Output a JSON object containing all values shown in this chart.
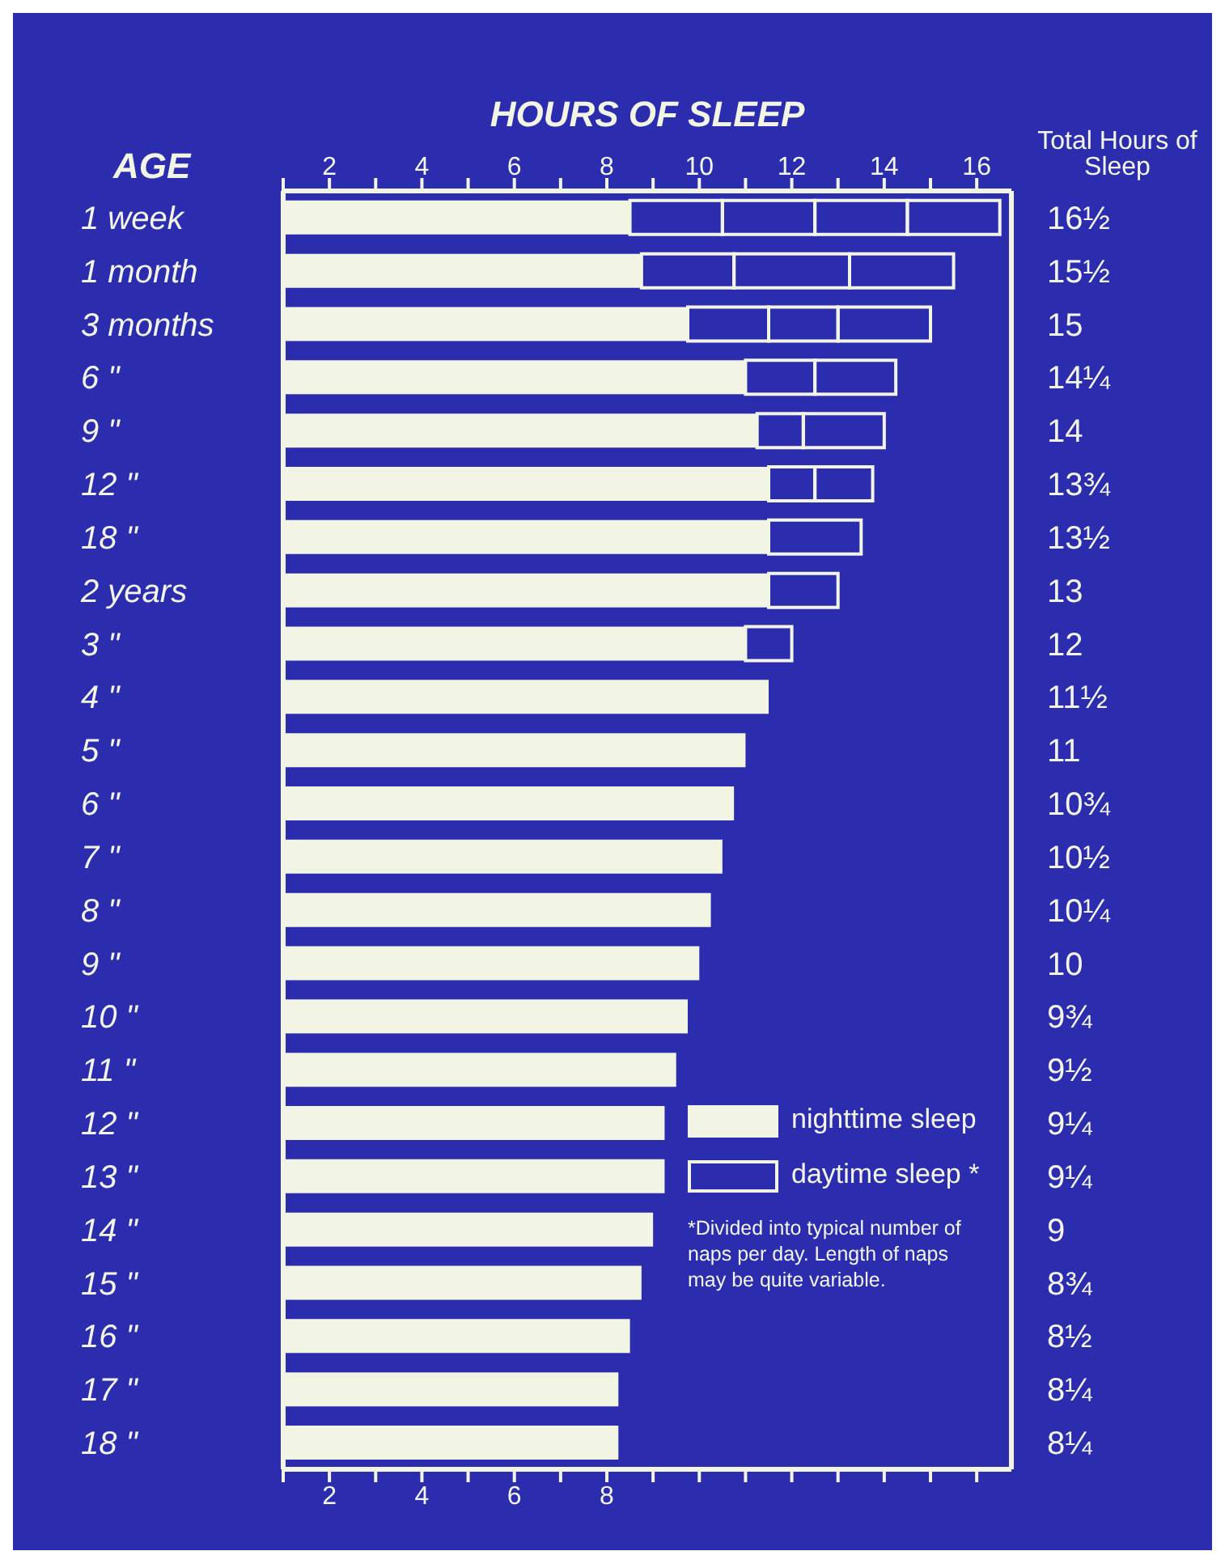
{
  "chart_data": {
    "type": "bar",
    "orientation": "horizontal",
    "stacked": true,
    "title": "HOURS OF SLEEP",
    "ylabel": "AGE",
    "categories": [
      "1 week",
      "1 month",
      "3 months",
      "6 \"",
      "9 \"",
      "12 \"",
      "18 \"",
      "2 years",
      "3 \"",
      "4 \"",
      "5 \"",
      "6 \"",
      "7 \"",
      "8 \"",
      "9 \"",
      "10 \"",
      "11 \"",
      "12 \"",
      "13 \"",
      "14 \"",
      "15 \"",
      "16 \"",
      "17 \"",
      "18 \""
    ],
    "series": [
      {
        "name": "nighttime sleep",
        "color": "#f2f4e4",
        "values": [
          8.5,
          8.75,
          9.75,
          11,
          11.25,
          11.5,
          11.5,
          11.5,
          11,
          11.5,
          11,
          10.75,
          10.5,
          10.25,
          10,
          9.75,
          9.5,
          9.25,
          9.25,
          9,
          8.75,
          8.5,
          8.25,
          8.25
        ]
      },
      {
        "name": "daytime sleep *",
        "color": "#f2f4e4",
        "values": [
          2,
          2,
          1.75,
          1.5,
          1,
          1,
          2,
          1.5,
          1,
          null,
          null,
          null,
          null,
          null,
          null,
          null,
          null,
          null,
          null,
          null,
          null,
          null,
          null,
          null
        ]
      },
      {
        "color": "#f2f4e4",
        "values": [
          2,
          2.5,
          1.5,
          1.75,
          1.75,
          1.25,
          null,
          null,
          null,
          null,
          null,
          null,
          null,
          null,
          null,
          null,
          null,
          null,
          null,
          null,
          null,
          null,
          null,
          null
        ]
      },
      {
        "color": "#f2f4e4",
        "values": [
          2,
          2.25,
          2,
          null,
          null,
          null,
          null,
          null,
          null,
          null,
          null,
          null,
          null,
          null,
          null,
          null,
          null,
          null,
          null,
          null,
          null,
          null,
          null,
          null
        ]
      },
      {
        "color": "#f2f4e4",
        "values": [
          2,
          null,
          null,
          null,
          null,
          null,
          null,
          null,
          null,
          null,
          null,
          null,
          null,
          null,
          null,
          null,
          null,
          null,
          null,
          null,
          null,
          null,
          null,
          null
        ]
      }
    ],
    "xlim": [
      1,
      16.75
    ],
    "xticks": [
      {
        "value": 1,
        "label": null
      },
      2,
      {
        "value": 3,
        "label": null
      },
      4,
      {
        "value": 5,
        "label": null
      },
      6,
      {
        "value": 7,
        "label": null
      },
      8,
      {
        "value": 9,
        "label": null
      },
      {
        "value": 10,
        "label": null
      },
      {
        "value": 11,
        "label": null
      },
      {
        "value": 12,
        "label": null
      },
      {
        "value": 13,
        "label": null
      },
      {
        "value": 14,
        "label": null
      },
      {
        "value": 15,
        "label": null
      },
      {
        "value": 16,
        "label": null
      }
    ],
    "x2lim": [
      1,
      16.75
    ],
    "x2ticks": [
      {
        "value": 1,
        "label": null
      },
      2,
      {
        "value": 3,
        "label": null
      },
      4,
      {
        "value": 5,
        "label": null
      },
      6,
      {
        "value": 7,
        "label": null
      },
      8,
      {
        "value": 9,
        "label": null
      },
      10,
      {
        "value": 11,
        "label": null
      },
      12,
      {
        "value": 13,
        "label": null
      },
      14,
      {
        "value": 15,
        "label": null
      },
      16
    ],
    "legend": "bottom right",
    "annotations": [
      "Total Hours of Sleep",
      "*Divided into typical number of naps per day. Length of naps may be quite variable.",
      "16½",
      "15½",
      "15",
      "14¼",
      "14",
      "13¾",
      "13½",
      "13",
      "12",
      "11½",
      "11",
      "10¾",
      "10½",
      "10¼",
      "10",
      "9¾",
      "9½",
      "9¼",
      "9¼",
      "9",
      "8¾",
      "8½",
      "8¼",
      "8¼"
    ]
  }
}
